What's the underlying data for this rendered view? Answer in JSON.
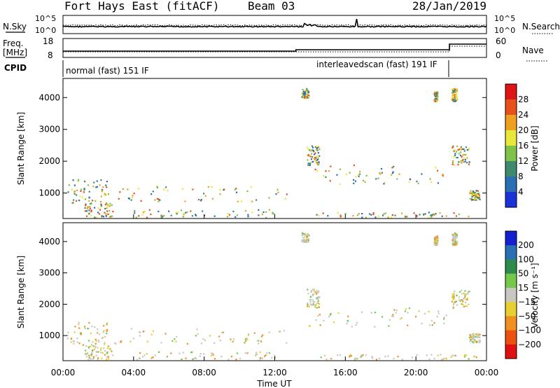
{
  "header": {
    "title": "Fort Hays East (fitACF)",
    "beam": "Beam 03",
    "date": "28/Jan/2019"
  },
  "colors": {
    "power_scale": [
      "#1a33d9",
      "#2a6fb5",
      "#3f8a6e",
      "#7fc24a",
      "#e8e83a",
      "#f0a020",
      "#e8501c",
      "#e01414"
    ],
    "velocity_scale": [
      "#1420d0",
      "#2a6fb5",
      "#2e8b4e",
      "#74c84a",
      "#c8c8c0",
      "#e8d030",
      "#f09020",
      "#ee5010",
      "#e01010"
    ]
  },
  "chart_data": [
    {
      "type": "line",
      "name": "noise-panel",
      "left_label": "N.Sky",
      "right_label": "N.Search",
      "left_ticks": [
        "10^5",
        "10^0"
      ],
      "right_ticks": [
        "10^5",
        "10^0"
      ]
    },
    {
      "type": "line",
      "name": "frequency-panel",
      "left_label_line1": "Freq.",
      "left_label_line2": "[MHz]",
      "right_label": "Nave",
      "left_ticks": [
        "18",
        "8"
      ],
      "right_ticks": [
        "60",
        "0"
      ],
      "cpid_label": "CPID",
      "modes": [
        {
          "label": "normal (fast) 151 IF",
          "start_hour": 0.0,
          "end_hour": 21.9
        },
        {
          "label": "interleavedscan (fast) 191 IF",
          "start_hour": 21.9,
          "end_hour": 24.0
        }
      ]
    },
    {
      "type": "heatmap",
      "name": "power",
      "ylabel": "Slant Range [km]",
      "yticks": [
        "4000",
        "3000",
        "2000",
        "1000"
      ],
      "ylim": [
        200,
        4600
      ],
      "xlim": [
        0,
        24
      ],
      "colorbar_label": "Power [dB]",
      "colorbar_ticks": [
        "28",
        "24",
        "20",
        "16",
        "12",
        "8",
        "4"
      ]
    },
    {
      "type": "heatmap",
      "name": "velocity",
      "ylabel": "Slant Range [km]",
      "yticks": [
        "4000",
        "3000",
        "2000",
        "1000"
      ],
      "ylim": [
        200,
        4600
      ],
      "xlim": [
        0,
        24
      ],
      "xlabel": "Time UT",
      "xticks": [
        "00:00",
        "04:00",
        "08:00",
        "12:00",
        "16:00",
        "20:00",
        "00:00"
      ],
      "colorbar_label": "Velocity [m s⁻¹]",
      "colorbar_ticks": [
        "200",
        "100",
        "50",
        "15",
        "−15",
        "−50",
        "−100",
        "−200"
      ]
    }
  ]
}
